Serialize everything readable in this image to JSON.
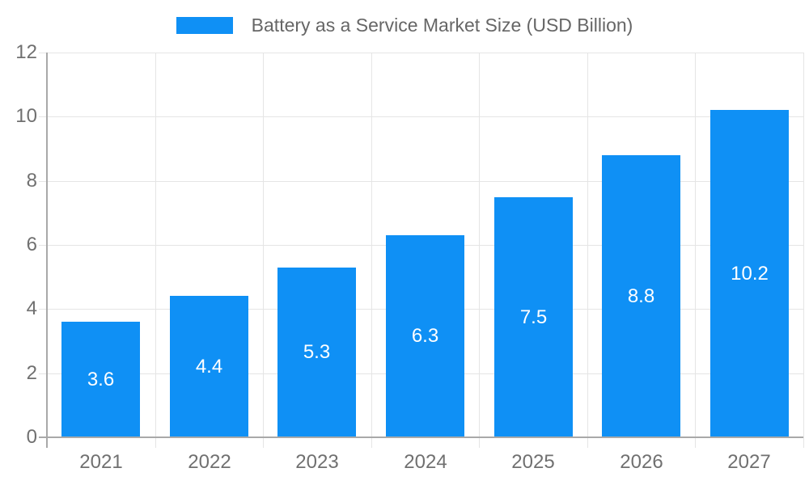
{
  "chart_data": {
    "type": "bar",
    "title": "Battery as a Service Market Size (USD Billion)",
    "categories": [
      "2021",
      "2022",
      "2023",
      "2024",
      "2025",
      "2026",
      "2027"
    ],
    "values": [
      3.6,
      4.4,
      5.3,
      6.3,
      7.5,
      8.8,
      10.2
    ],
    "value_labels": [
      "3.6",
      "4.4",
      "5.3",
      "6.3",
      "7.5",
      "8.8",
      "10.2"
    ],
    "xlabel": "",
    "ylabel": "",
    "ylim": [
      0,
      12
    ],
    "yticks": [
      0,
      2,
      4,
      6,
      8,
      10,
      12
    ],
    "legend_position": "top",
    "grid": true,
    "value_label_position": "inside-center",
    "colors": {
      "bar": "#0f90f5",
      "grid": "#e5e5e5",
      "axis": "#a9a9a9",
      "tick_text": "#707070",
      "title_text": "#666666",
      "value_text": "#ffffff"
    }
  }
}
